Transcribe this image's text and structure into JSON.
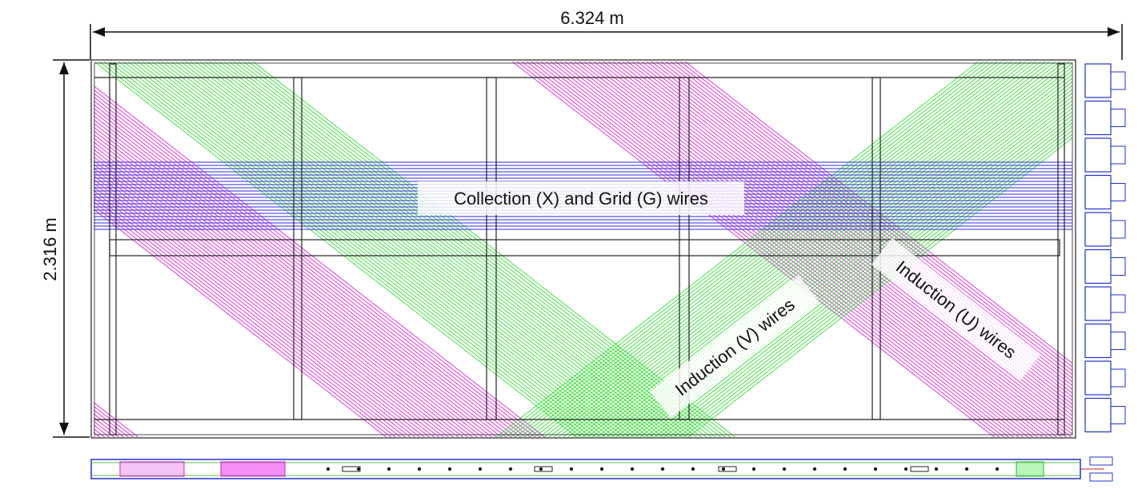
{
  "dimensions": {
    "width_label": "6.324 m",
    "height_label": "2.316 m"
  },
  "labels": {
    "collection": "Collection (X) and Grid (G) wires",
    "induction_v": "Induction (V) wires",
    "induction_u": "Induction (U) wires"
  },
  "colors": {
    "collection_wires": "#2a2ad8",
    "induction_v_wires": "#33dd33",
    "induction_u_wires": "#dd22dd",
    "frame": "#222222"
  }
}
